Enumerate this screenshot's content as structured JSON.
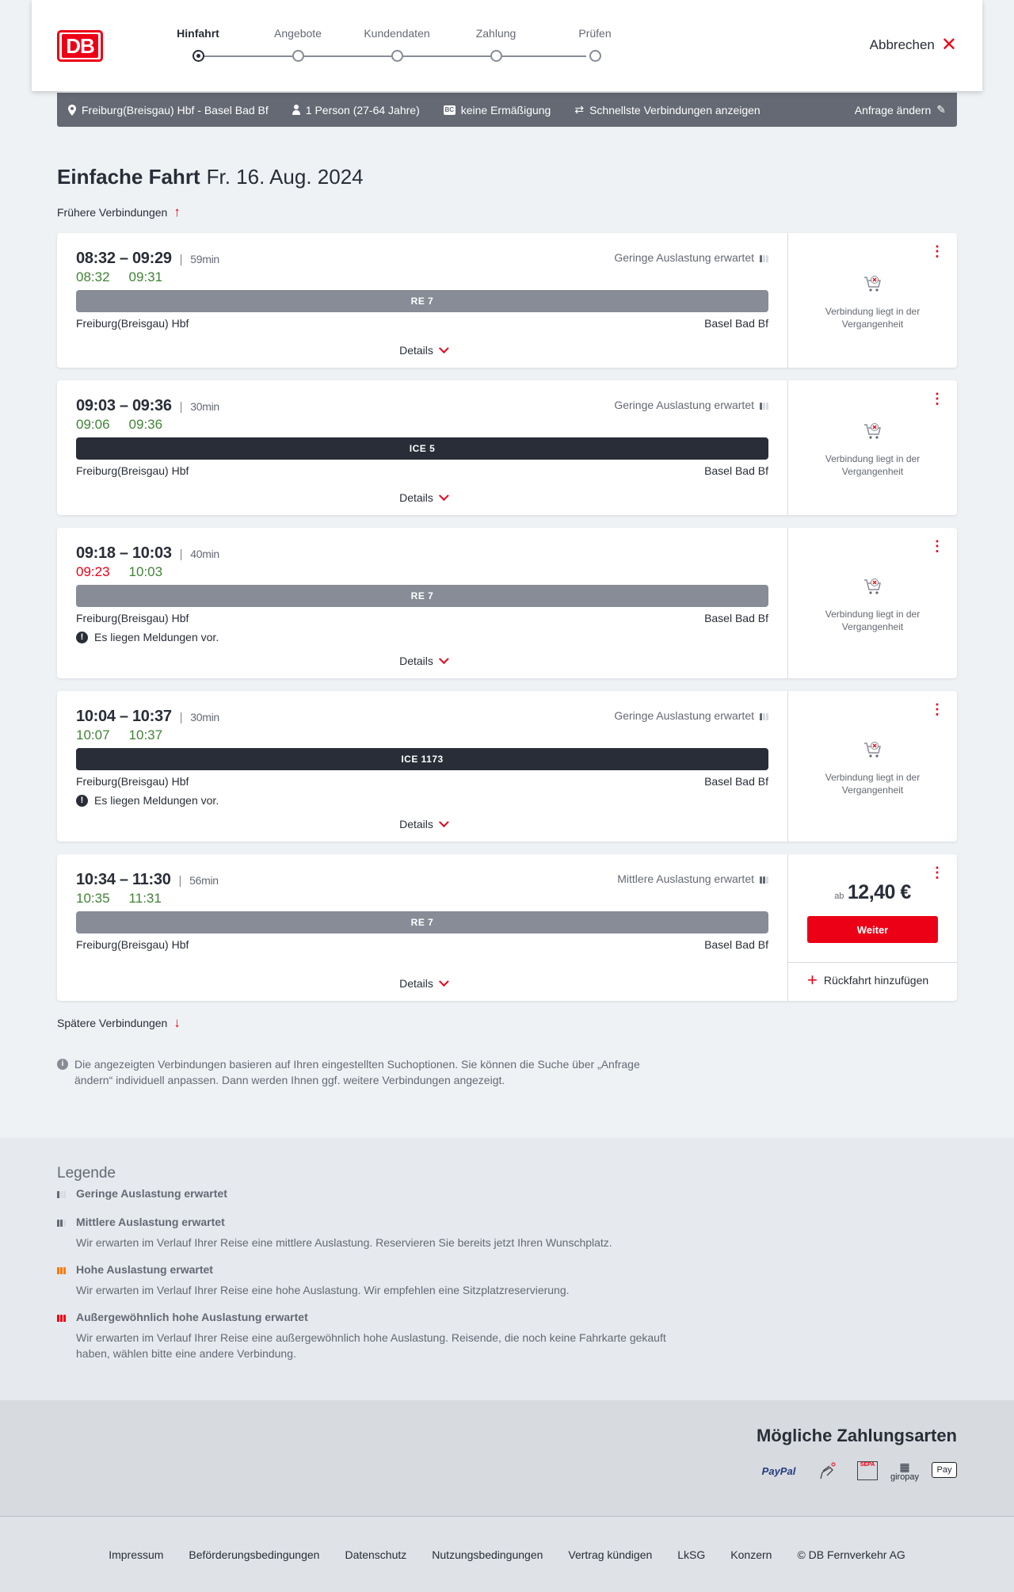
{
  "header": {
    "logo": "DB",
    "steps": [
      "Hinfahrt",
      "Angebote",
      "Kundendaten",
      "Zahlung",
      "Prüfen"
    ],
    "active_step": 0,
    "cancel_label": "Abbrechen"
  },
  "search": {
    "route": "Freiburg(Breisgau) Hbf - Basel Bad Bf",
    "passengers": "1 Person (27-64 Jahre)",
    "bahncard_icon": "BC",
    "discount": "keine Ermäßigung",
    "option": "Schnellste Verbindungen anzeigen",
    "change_label": "Anfrage ändern"
  },
  "page": {
    "title": "Einfache Fahrt",
    "date": "Fr. 16. Aug. 2024",
    "earlier": "Frühere Verbindungen",
    "later": "Spätere Verbindungen",
    "info": "Die angezeigten Verbindungen basieren auf Ihren eingestellten Suchoptionen. Sie können die Suche über „Anfrage ändern“ individuell anpassen. Dann werden Ihnen ggf. weitere Verbindungen angezeigt."
  },
  "labels": {
    "details": "Details",
    "past": "Verbindung liegt in der Vergangenheit",
    "message": "Es liegen Meldungen vor.",
    "price_prefix": "ab",
    "continue": "Weiter",
    "add_return": "Rückfahrt hinzufügen"
  },
  "colors": {
    "accent": "#ec0016",
    "ontime": "#408335",
    "regional": "#878c96",
    "longdistance": "#282d37"
  },
  "connections": [
    {
      "time": "08:32 – 09:29",
      "duration": "59min",
      "rt_dep": "08:32",
      "rt_arr": "09:31",
      "dep_late": false,
      "occupancy": "Geringe Auslastung erwartet",
      "occ_level": 1,
      "train": "RE 7",
      "type": "regional",
      "from": "Freiburg(Breisgau) Hbf",
      "to": "Basel Bad Bf",
      "has_message": false,
      "past": true
    },
    {
      "time": "09:03 – 09:36",
      "duration": "30min",
      "rt_dep": "09:06",
      "rt_arr": "09:36",
      "dep_late": false,
      "occupancy": "Geringe Auslastung erwartet",
      "occ_level": 1,
      "train": "ICE 5",
      "type": "longdistance",
      "from": "Freiburg(Breisgau) Hbf",
      "to": "Basel Bad Bf",
      "has_message": false,
      "past": true
    },
    {
      "time": "09:18 – 10:03",
      "duration": "40min",
      "rt_dep": "09:23",
      "rt_arr": "10:03",
      "dep_late": true,
      "occupancy": "",
      "occ_level": 0,
      "train": "RE 7",
      "type": "regional",
      "from": "Freiburg(Breisgau) Hbf",
      "to": "Basel Bad Bf",
      "has_message": true,
      "past": true
    },
    {
      "time": "10:04 – 10:37",
      "duration": "30min",
      "rt_dep": "10:07",
      "rt_arr": "10:37",
      "dep_late": false,
      "occupancy": "Geringe Auslastung erwartet",
      "occ_level": 1,
      "train": "ICE 1173",
      "type": "longdistance",
      "from": "Freiburg(Breisgau) Hbf",
      "to": "Basel Bad Bf",
      "has_message": true,
      "past": true
    },
    {
      "time": "10:34 – 11:30",
      "duration": "56min",
      "rt_dep": "10:35",
      "rt_arr": "11:31",
      "dep_late": false,
      "occupancy": "Mittlere Auslastung erwartet",
      "occ_level": 2,
      "train": "RE 7",
      "type": "regional",
      "from": "Freiburg(Breisgau) Hbf",
      "to": "Basel Bad Bf",
      "has_message": false,
      "past": false,
      "price": "12,40 €"
    }
  ],
  "legend": {
    "title": "Legende",
    "items": [
      {
        "title": "Geringe Auslastung erwartet",
        "text": "",
        "level": 1,
        "color": "#646973"
      },
      {
        "title": "Mittlere Auslastung erwartet",
        "text": "Wir erwarten im Verlauf Ihrer Reise eine mittlere Auslastung. Reservieren Sie bereits jetzt Ihren Wunschplatz.",
        "level": 2,
        "color": "#646973"
      },
      {
        "title": "Hohe Auslastung erwartet",
        "text": "Wir erwarten im Verlauf Ihrer Reise eine hohe Auslastung. Wir empfehlen eine Sitzplatzreservierung.",
        "level": 3,
        "color": "#ff7a00"
      },
      {
        "title": "Außergewöhnlich hohe Auslastung erwartet",
        "text": "Wir erwarten im Verlauf Ihrer Reise eine außergewöhnlich hohe Auslastung. Reisende, die noch keine Fahrkarte gekauft haben, wählen bitte eine andere Verbindung.",
        "level": 4,
        "color": "#ec0016"
      }
    ]
  },
  "payment": {
    "title": "Mögliche Zahlungsarten",
    "methods": [
      "PayPal",
      "SEPA",
      "giropay",
      "Pay"
    ]
  },
  "footer": {
    "links": [
      "Impressum",
      "Beförderungsbedingungen",
      "Datenschutz",
      "Nutzungsbedingungen",
      "Vertrag kündigen",
      "LkSG",
      "Konzern",
      "© DB Fernverkehr AG"
    ]
  }
}
